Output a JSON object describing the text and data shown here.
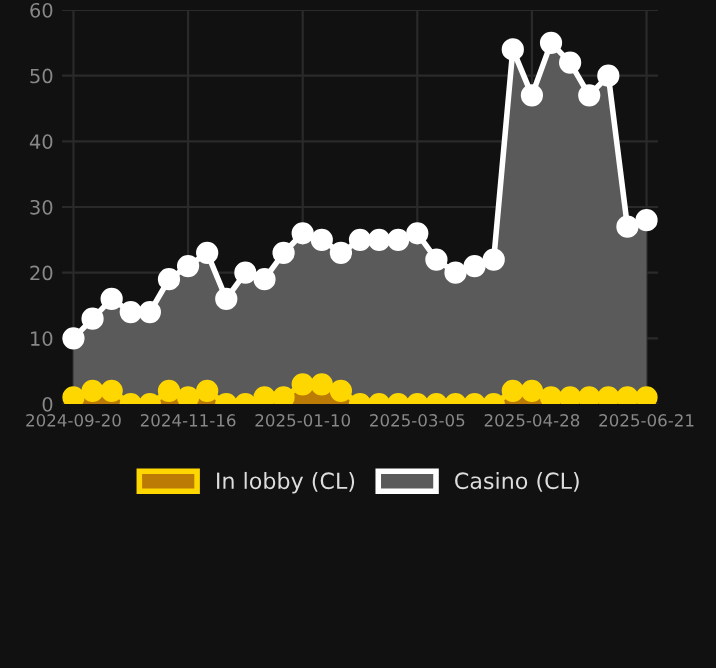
{
  "chart_data": {
    "type": "area",
    "categories": [
      "2024-09-20",
      null,
      null,
      null,
      null,
      null,
      "2024-11-16",
      null,
      null,
      null,
      null,
      null,
      "2025-01-10",
      null,
      null,
      null,
      null,
      null,
      "2025-03-05",
      null,
      null,
      null,
      null,
      null,
      "2025-04-28",
      null,
      null,
      null,
      null,
      null,
      "2025-06-21"
    ],
    "series": [
      {
        "name": "In lobby (CL)",
        "color": "#ffd700",
        "values": [
          1,
          2,
          2,
          0,
          0,
          2,
          1,
          2,
          0,
          0,
          1,
          1,
          3,
          3,
          2,
          0,
          0,
          0,
          0,
          0,
          0,
          0,
          0,
          2,
          2,
          1,
          1,
          1,
          1,
          1,
          1
        ]
      },
      {
        "name": "Casino (CL)",
        "color": "#ffffff",
        "values": [
          10,
          13,
          16,
          14,
          14,
          19,
          21,
          23,
          16,
          20,
          19,
          23,
          26,
          25,
          23,
          25,
          25,
          25,
          26,
          22,
          20,
          21,
          22,
          54,
          47,
          55,
          52,
          47,
          50,
          27,
          28
        ]
      }
    ],
    "ylim": [
      0,
      60
    ],
    "yticks": [
      0,
      10,
      20,
      30,
      40,
      50,
      60
    ],
    "grid": true,
    "legend": "bottom",
    "marker": "circle",
    "line_style": "solid"
  }
}
